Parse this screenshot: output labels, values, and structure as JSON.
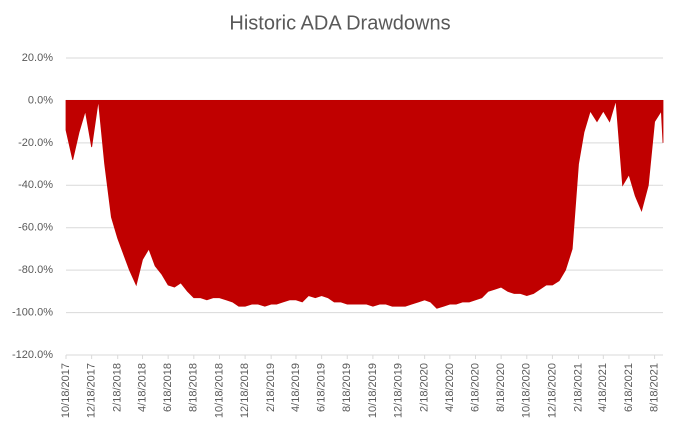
{
  "chart_data": {
    "type": "area",
    "title": "Historic ADA Drawdowns",
    "color": "#c00000",
    "grid": true,
    "xlim": [
      "10/18/2017",
      "9/7/2021"
    ],
    "ylim": [
      -120,
      20
    ],
    "yticks": [
      {
        "value": 20,
        "label": "20.0%"
      },
      {
        "value": 0,
        "label": "0.0%"
      },
      {
        "value": -20,
        "label": "-20.0%"
      },
      {
        "value": -40,
        "label": "-40.0%"
      },
      {
        "value": -60,
        "label": "-60.0%"
      },
      {
        "value": -80,
        "label": "-80.0%"
      },
      {
        "value": -100,
        "label": "-100.0%"
      },
      {
        "value": -120,
        "label": "-120.0%"
      }
    ],
    "xticks": [
      "10/18/2017",
      "12/18/2017",
      "2/18/2018",
      "4/18/2018",
      "6/18/2018",
      "8/18/2018",
      "10/18/2018",
      "12/18/2018",
      "2/18/2019",
      "4/18/2019",
      "6/18/2019",
      "8/18/2019",
      "10/18/2019",
      "12/18/2019",
      "2/18/2020",
      "4/18/2020",
      "6/18/2020",
      "8/18/2020",
      "10/18/2020",
      "12/18/2020",
      "2/18/2021",
      "4/18/2021",
      "6/18/2021",
      "8/18/2021"
    ],
    "x": [
      "10/18/2017",
      "11/3/2017",
      "11/18/2017",
      "12/3/2017",
      "12/18/2017",
      "1/3/2018",
      "1/18/2018",
      "2/3/2018",
      "2/18/2018",
      "3/3/2018",
      "3/18/2018",
      "4/3/2018",
      "4/18/2018",
      "5/3/2018",
      "5/18/2018",
      "6/3/2018",
      "6/18/2018",
      "7/3/2018",
      "7/18/2018",
      "8/3/2018",
      "8/18/2018",
      "9/3/2018",
      "9/18/2018",
      "10/3/2018",
      "10/18/2018",
      "11/3/2018",
      "11/18/2018",
      "12/3/2018",
      "12/18/2018",
      "1/3/2019",
      "1/18/2019",
      "2/3/2019",
      "2/18/2019",
      "3/3/2019",
      "3/18/2019",
      "4/3/2019",
      "4/18/2019",
      "5/3/2019",
      "5/18/2019",
      "6/3/2019",
      "6/18/2019",
      "7/3/2019",
      "7/18/2019",
      "8/3/2019",
      "8/18/2019",
      "9/3/2019",
      "9/18/2019",
      "10/3/2019",
      "10/18/2019",
      "11/3/2019",
      "11/18/2019",
      "12/3/2019",
      "12/18/2019",
      "1/3/2020",
      "1/18/2020",
      "2/3/2020",
      "2/18/2020",
      "3/3/2020",
      "3/18/2020",
      "4/3/2020",
      "4/18/2020",
      "5/3/2020",
      "5/18/2020",
      "6/3/2020",
      "6/18/2020",
      "7/3/2020",
      "7/18/2020",
      "8/3/2020",
      "8/18/2020",
      "9/3/2020",
      "9/18/2020",
      "10/3/2020",
      "10/18/2020",
      "11/3/2020",
      "11/18/2020",
      "12/3/2020",
      "12/18/2020",
      "1/3/2021",
      "1/18/2021",
      "2/3/2021",
      "2/18/2021",
      "3/3/2021",
      "3/18/2021",
      "4/3/2021",
      "4/18/2021",
      "5/3/2021",
      "5/18/2021",
      "6/3/2021",
      "6/18/2021",
      "7/3/2021",
      "7/18/2021",
      "8/3/2021",
      "8/18/2021",
      "9/3/2021",
      "9/7/2021"
    ],
    "values": [
      -14,
      -28,
      -15,
      -5,
      -22,
      0,
      -30,
      -55,
      -65,
      -72,
      -80,
      -87,
      -75,
      -70,
      -78,
      -82,
      -87,
      -88,
      -86,
      -90,
      -93,
      -93,
      -94,
      -93,
      -93,
      -94,
      -95,
      -97,
      -97,
      -96,
      -96,
      -97,
      -96,
      -96,
      -95,
      -94,
      -94,
      -95,
      -92,
      -93,
      -92,
      -93,
      -95,
      -95,
      -96,
      -96,
      -96,
      -96,
      -97,
      -96,
      -96,
      -97,
      -97,
      -97,
      -96,
      -95,
      -94,
      -95,
      -98,
      -97,
      -96,
      -96,
      -95,
      -95,
      -94,
      -93,
      -90,
      -89,
      -88,
      -90,
      -91,
      -91,
      -92,
      -91,
      -89,
      -87,
      -87,
      -85,
      -80,
      -70,
      -30,
      -15,
      -5,
      -10,
      -5,
      -10,
      0,
      -40,
      -35,
      -45,
      -52,
      -40,
      -10,
      -5,
      -20
    ]
  }
}
